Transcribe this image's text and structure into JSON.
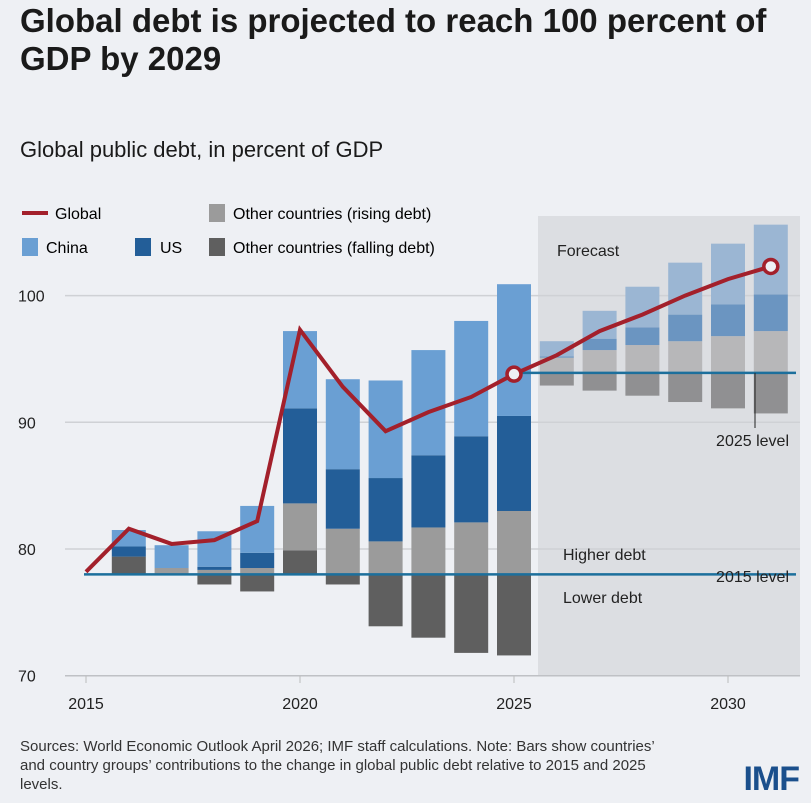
{
  "title": "Global debt is projected to reach 100 percent of GDP by 2029",
  "subtitle": "Global public debt, in percent of GDP",
  "sources": "Sources: World Economic Outlook April 2026; IMF staff calculations. Note: Bars show countries’ and country groups’ contributions to the change in global public debt relative to 2015 and 2025 levels.",
  "logo": "IMF",
  "chart_data": {
    "type": "bar",
    "title": "Global public debt, in percent of GDP",
    "ylim": [
      70,
      104
    ],
    "yticks": [
      "70",
      "80",
      "90",
      "100"
    ],
    "xticks": [
      "2015",
      "2020",
      "2025",
      "2030"
    ],
    "legend": {
      "global": "Global",
      "china": "China",
      "us": "US",
      "rising": "Other countries (rising debt)",
      "falling": "Other countries (falling debt)"
    },
    "annotations": {
      "forecast": "Forecast",
      "higher": "Higher debt",
      "lower": "Lower debt",
      "level2015": "2015 level",
      "level2025": "2025 level"
    },
    "baseline_2015": 78.0,
    "baseline_2025": 93.9,
    "forecast_start": 2026,
    "colors": {
      "global": "#a3202b",
      "china": "#6a9fd3",
      "us": "#235e98",
      "rising": "#9b9b9b",
      "falling": "#5f5f5f",
      "level": "#1c6f9c"
    },
    "forecast_colors": {
      "china": "#9bb6d3",
      "us": "#6b95c1",
      "rising": "#b7b7b9",
      "falling": "#909092"
    },
    "years": [
      2016,
      2017,
      2018,
      2019,
      2020,
      2021,
      2022,
      2023,
      2024,
      2025,
      2026,
      2027,
      2028,
      2029,
      2030,
      2031
    ],
    "series": [
      {
        "name": "Other countries (falling debt)",
        "key": "falling",
        "values": [
          1.4,
          0,
          -0.8,
          -1.35,
          1.9,
          -0.8,
          -4.1,
          -5.0,
          -6.2,
          -6.4,
          -1.0,
          -1.4,
          -1.8,
          -2.3,
          -2.8,
          -3.2
        ]
      },
      {
        "name": "Other countries (rising debt)",
        "key": "rising",
        "values": [
          0,
          0.5,
          0.35,
          0.5,
          3.7,
          3.6,
          2.6,
          3.7,
          4.1,
          5.0,
          1.2,
          1.8,
          2.2,
          2.5,
          2.9,
          3.3
        ]
      },
      {
        "name": "US",
        "key": "us",
        "values": [
          0.8,
          0,
          0.25,
          1.2,
          7.5,
          4.7,
          5.0,
          5.7,
          6.8,
          7.5,
          0.1,
          0.9,
          1.4,
          2.1,
          2.5,
          2.9
        ]
      },
      {
        "name": "China",
        "key": "china",
        "values": [
          1.3,
          1.8,
          2.8,
          3.7,
          6.1,
          7.1,
          7.7,
          8.3,
          9.1,
          10.4,
          1.2,
          2.2,
          3.2,
          4.1,
          4.8,
          5.5
        ]
      }
    ],
    "global_line": {
      "x": [
        2015,
        2016,
        2017,
        2018,
        2019,
        2020,
        2021,
        2022,
        2023,
        2024,
        2025,
        2026,
        2027,
        2028,
        2029,
        2030,
        2031
      ],
      "y": [
        78.2,
        81.6,
        80.4,
        80.7,
        82.2,
        97.3,
        92.8,
        89.3,
        90.8,
        92.0,
        93.8,
        95.3,
        97.2,
        98.5,
        100.0,
        101.3,
        102.3
      ]
    }
  }
}
